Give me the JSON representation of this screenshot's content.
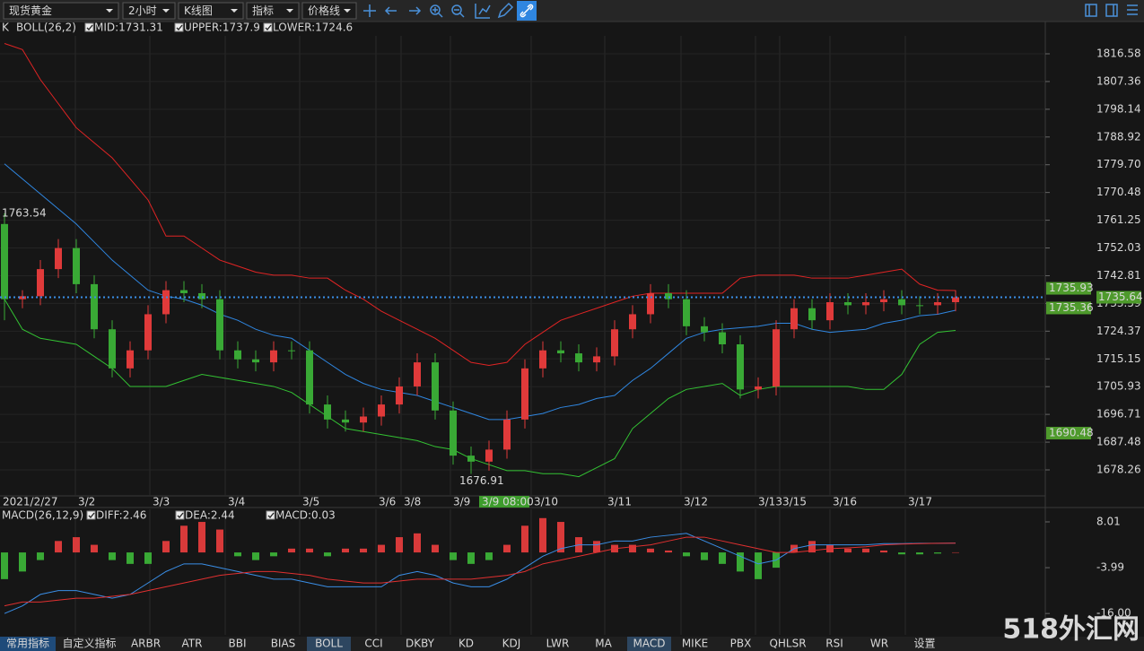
{
  "toolbar": {
    "selects": [
      "现货黄金",
      "2小时",
      "K线图",
      "指标",
      "价格线"
    ]
  },
  "chart_data": [
    {
      "type": "candlestick",
      "legend": [
        "K",
        "BOLL(26,2)"
      ],
      "up_color": "#e03a3a",
      "down_color": "#39a935",
      "open": [
        1760,
        1735,
        1736,
        1745,
        1752,
        1740,
        1725,
        1712,
        1718,
        1730,
        1738,
        1737,
        1735,
        1718,
        1715,
        1714,
        1718,
        1718,
        1700,
        1695,
        1694,
        1696,
        1700,
        1706,
        1714,
        1698,
        1683,
        1681,
        1685,
        1695,
        1712,
        1718,
        1717,
        1714,
        1716,
        1725,
        1730,
        1737,
        1735,
        1726,
        1724,
        1720,
        1705,
        1706,
        1725,
        1732,
        1728,
        1734,
        1733,
        1734,
        1735,
        1733,
        1733,
        1734
      ],
      "high": [
        1763.54,
        1738,
        1748,
        1755,
        1755,
        1743,
        1728,
        1721,
        1733,
        1741,
        1741,
        1740,
        1738,
        1721,
        1718,
        1721,
        1721,
        1721,
        1703,
        1698,
        1699,
        1703,
        1709,
        1717,
        1717,
        1701,
        1686,
        1688,
        1698,
        1715,
        1721,
        1721,
        1720,
        1719,
        1728,
        1733,
        1740,
        1740,
        1738,
        1729,
        1727,
        1723,
        1709,
        1728,
        1735,
        1735,
        1737,
        1737,
        1737,
        1738,
        1738,
        1736,
        1737,
        1738
      ],
      "low": [
        1728,
        1732,
        1733,
        1742,
        1737,
        1722,
        1709,
        1709,
        1715,
        1727,
        1734,
        1732,
        1715,
        1712,
        1711,
        1711,
        1715,
        1697,
        1692,
        1691,
        1691,
        1693,
        1697,
        1703,
        1695,
        1680,
        1676.91,
        1678,
        1682,
        1692,
        1709,
        1714,
        1711,
        1711,
        1713,
        1722,
        1727,
        1732,
        1723,
        1721,
        1717,
        1702,
        1702,
        1703,
        1722,
        1725,
        1725,
        1730,
        1730,
        1731,
        1730,
        1730,
        1730,
        1731
      ],
      "close": [
        1735,
        1736,
        1745,
        1752,
        1740,
        1725,
        1712,
        1718,
        1730,
        1738,
        1737,
        1735,
        1718,
        1715,
        1714,
        1718,
        1718,
        1700,
        1695,
        1694,
        1696,
        1700,
        1706,
        1714,
        1698,
        1683,
        1681,
        1685,
        1695,
        1712,
        1718,
        1717,
        1714,
        1716,
        1725,
        1730,
        1737,
        1735,
        1726,
        1724,
        1720,
        1705,
        1706,
        1725,
        1732,
        1728,
        1734,
        1733,
        1734,
        1735,
        1733,
        1733,
        1734,
        1735.64
      ],
      "series": [
        {
          "name": "MID:1731.31",
          "color": "#2f86e0",
          "values": [
            1780,
            1775,
            1770,
            1765,
            1760,
            1754,
            1748,
            1743,
            1738,
            1736,
            1735,
            1733,
            1730,
            1728,
            1725,
            1723,
            1722,
            1718,
            1714,
            1710,
            1707,
            1705,
            1704,
            1703,
            1701,
            1699,
            1697,
            1695,
            1695,
            1696,
            1697,
            1699,
            1700,
            1702,
            1703,
            1708,
            1712,
            1717,
            1722,
            1724,
            1725,
            1725.5,
            1726,
            1727,
            1727,
            1725,
            1724,
            1724.5,
            1725,
            1727,
            1728,
            1729.5,
            1730,
            1731.31
          ]
        },
        {
          "name": "UPPER:1737.9",
          "color": "#e02424",
          "values": [
            1820,
            1818,
            1808,
            1800,
            1792,
            1787,
            1782,
            1775,
            1768,
            1756,
            1756,
            1752,
            1748,
            1746,
            1744,
            1743,
            1743,
            1742,
            1742,
            1738,
            1735,
            1731,
            1728,
            1725,
            1722,
            1718,
            1714,
            1713,
            1714,
            1720,
            1724,
            1728,
            1730,
            1732,
            1734,
            1736,
            1737,
            1737,
            1737,
            1737,
            1737,
            1742,
            1743,
            1743,
            1743,
            1742,
            1742,
            1742,
            1743,
            1744,
            1745,
            1740,
            1738,
            1737.9
          ]
        },
        {
          "name": "LOWER:1724.6",
          "color": "#33c233",
          "values": [
            1735,
            1725,
            1722,
            1721,
            1720,
            1716,
            1712,
            1706,
            1706,
            1706,
            1708,
            1710,
            1709,
            1708,
            1707,
            1706,
            1704,
            1700,
            1696,
            1692,
            1691,
            1690,
            1689,
            1688,
            1686,
            1685,
            1682,
            1680,
            1678,
            1678,
            1677,
            1677,
            1676,
            1679,
            1682,
            1692,
            1697,
            1702,
            1705,
            1706,
            1707,
            1703,
            1705,
            1706,
            1706,
            1706,
            1706,
            1706,
            1705,
            1705,
            1710,
            1720,
            1724,
            1724.6
          ]
        }
      ],
      "annotations": [
        1763.54,
        1676.91
      ],
      "current_price": 1735.64,
      "price_tags": [
        1735.93,
        1735.36,
        1690.48
      ],
      "ylim": [
        1669.62,
        1822.54
      ],
      "yticks": [
        1816.58,
        1807.36,
        1798.14,
        1788.92,
        {
          "value": 1779.7,
          "label": "1779.70"
        },
        1770.48,
        1761.25,
        1752.03,
        1742.81,
        1733.59,
        1724.37,
        1715.15,
        1705.93,
        1696.71,
        1687.48,
        1678.26
      ],
      "x_labels": [
        "2021/2/27",
        "3/2",
        "3/3",
        "3/4",
        "3/5",
        "3/6",
        "3/8",
        "3/9",
        "3/10",
        "3/11",
        "3/12",
        "3/13",
        "3/15",
        "3/16",
        "3/17"
      ],
      "crosshair_label": "3/9 08:00",
      "grid": true
    },
    {
      "type": "macd",
      "legend": [
        "MACD(26,12,9)"
      ],
      "histogram": {
        "name": "MACD:0.03",
        "up_color": "#d83a3a",
        "down_color": "#39a935",
        "values": [
          -7,
          -5,
          -2,
          3,
          4,
          2,
          -2,
          -3,
          -3,
          3,
          7,
          8,
          6,
          -1,
          -2,
          -1,
          1,
          1,
          -1,
          1,
          1,
          2,
          4,
          5,
          2,
          -2,
          -3,
          -2,
          2,
          7,
          9,
          8,
          4,
          3,
          2,
          2,
          1,
          0.5,
          -1,
          -2,
          -3,
          -5,
          -7,
          -4,
          2,
          3,
          2,
          1,
          1,
          0.5,
          -0.5,
          -0.5,
          -0.3,
          0.03
        ]
      },
      "series": [
        {
          "name": "DIFF:2.46",
          "color": "#3a8ee6",
          "values": [
            -16,
            -14,
            -11,
            -10,
            -10,
            -11,
            -12,
            -11,
            -8,
            -5,
            -3,
            -3,
            -4,
            -5,
            -6,
            -7,
            -7,
            -8,
            -9,
            -9,
            -9,
            -9,
            -6,
            -5,
            -6,
            -8,
            -9,
            -9,
            -7,
            -4,
            -1,
            1,
            2,
            2,
            3,
            3,
            4,
            4.5,
            5,
            3,
            1,
            -1,
            -3,
            -2,
            1,
            2,
            2,
            2,
            2,
            2.3,
            2.3,
            2.4,
            2.4,
            2.46
          ]
        },
        {
          "name": "DEA:2.44",
          "color": "#e03030",
          "values": [
            -14,
            -13,
            -13,
            -12.5,
            -12,
            -12,
            -11.5,
            -11,
            -10,
            -9,
            -8,
            -7,
            -6,
            -5.5,
            -5,
            -5,
            -5.5,
            -6,
            -7,
            -7.5,
            -8,
            -8,
            -7.5,
            -7,
            -7,
            -7,
            -7,
            -6.5,
            -6,
            -5,
            -3,
            -2,
            -1,
            0,
            1,
            1.5,
            2,
            3,
            4,
            4,
            3,
            2,
            1,
            0,
            0,
            0.5,
            1,
            1.2,
            1.5,
            2,
            2.2,
            2.3,
            2.4,
            2.44
          ]
        }
      ],
      "ylim": [
        -21.6,
        10.36
      ],
      "yticks": [
        8.01,
        -3.99,
        {
          "value": -16,
          "label": "-16.00"
        }
      ]
    }
  ],
  "tabs": [
    {
      "label": "常用指标",
      "active": true
    },
    {
      "label": "自定义指标",
      "active": false
    },
    {
      "label": "ARBR",
      "active": false
    },
    {
      "label": "ATR",
      "active": false
    },
    {
      "label": "BBI",
      "active": false
    },
    {
      "label": "BIAS",
      "active": false
    },
    {
      "label": "BOLL",
      "active": true
    },
    {
      "label": "CCI",
      "active": false
    },
    {
      "label": "DKBY",
      "active": false
    },
    {
      "label": "KD",
      "active": false
    },
    {
      "label": "KDJ",
      "active": false
    },
    {
      "label": "LWR",
      "active": false
    },
    {
      "label": "MA",
      "active": false
    },
    {
      "label": "MACD",
      "active": true
    },
    {
      "label": "MIKE",
      "active": false
    },
    {
      "label": "PBX",
      "active": false
    },
    {
      "label": "QHLSR",
      "active": false
    },
    {
      "label": "RSI",
      "active": false
    },
    {
      "label": "WR",
      "active": false
    },
    {
      "label": "设置",
      "active": false
    }
  ],
  "watermark": "518外汇网"
}
